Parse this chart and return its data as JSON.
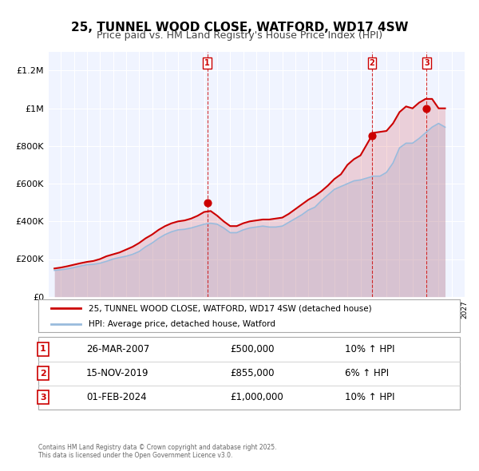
{
  "title": "25, TUNNEL WOOD CLOSE, WATFORD, WD17 4SW",
  "subtitle": "Price paid vs. HM Land Registry's House Price Index (HPI)",
  "legend_line1": "25, TUNNEL WOOD CLOSE, WATFORD, WD17 4SW (detached house)",
  "legend_line2": "HPI: Average price, detached house, Watford",
  "price_color": "#cc0000",
  "hpi_color": "#99bbdd",
  "transaction_color": "#cc0000",
  "vline_color": "#cc0000",
  "background_color": "#f0f4ff",
  "ylim": [
    0,
    1300000
  ],
  "yticks": [
    0,
    200000,
    400000,
    600000,
    800000,
    1000000,
    1200000
  ],
  "ytick_labels": [
    "£0",
    "£200K",
    "£400K",
    "£600K",
    "£800K",
    "£1M",
    "£1.2M"
  ],
  "xstart": 1995,
  "xend": 2027,
  "transactions": [
    {
      "label": "1",
      "date": 2007.23,
      "price": 500000,
      "date_str": "26-MAR-2007",
      "price_str": "£500,000",
      "hpi_str": "10% ↑ HPI"
    },
    {
      "label": "2",
      "date": 2019.88,
      "price": 855000,
      "date_str": "15-NOV-2019",
      "price_str": "£855,000",
      "hpi_str": "6% ↑ HPI"
    },
    {
      "label": "3",
      "date": 2024.08,
      "price": 1000000,
      "date_str": "01-FEB-2024",
      "price_str": "£1,000,000",
      "hpi_str": "10% ↑ HPI"
    }
  ],
  "footnote": "Contains HM Land Registry data © Crown copyright and database right 2025.\nThis data is licensed under the Open Government Licence v3.0.",
  "hpi_series": {
    "years": [
      1995.5,
      1996.0,
      1996.5,
      1997.0,
      1997.5,
      1998.0,
      1998.5,
      1999.0,
      1999.5,
      2000.0,
      2000.5,
      2001.0,
      2001.5,
      2002.0,
      2002.5,
      2003.0,
      2003.5,
      2004.0,
      2004.5,
      2005.0,
      2005.5,
      2006.0,
      2006.5,
      2007.0,
      2007.5,
      2008.0,
      2008.5,
      2009.0,
      2009.5,
      2010.0,
      2010.5,
      2011.0,
      2011.5,
      2012.0,
      2012.5,
      2013.0,
      2013.5,
      2014.0,
      2014.5,
      2015.0,
      2015.5,
      2016.0,
      2016.5,
      2017.0,
      2017.5,
      2018.0,
      2018.5,
      2019.0,
      2019.5,
      2020.0,
      2020.5,
      2021.0,
      2021.5,
      2022.0,
      2022.5,
      2023.0,
      2023.5,
      2024.0,
      2024.5,
      2025.0,
      2025.5
    ],
    "values": [
      140000,
      143000,
      148000,
      155000,
      163000,
      170000,
      172000,
      178000,
      188000,
      200000,
      208000,
      215000,
      225000,
      240000,
      265000,
      285000,
      310000,
      330000,
      345000,
      355000,
      358000,
      365000,
      375000,
      385000,
      390000,
      385000,
      365000,
      340000,
      340000,
      355000,
      365000,
      370000,
      375000,
      370000,
      370000,
      375000,
      395000,
      415000,
      435000,
      460000,
      475000,
      510000,
      540000,
      570000,
      585000,
      600000,
      615000,
      620000,
      630000,
      640000,
      640000,
      660000,
      710000,
      790000,
      815000,
      815000,
      840000,
      870000,
      900000,
      920000,
      900000
    ]
  },
  "price_series": {
    "years": [
      1995.5,
      1996.0,
      1996.5,
      1997.0,
      1997.5,
      1998.0,
      1998.5,
      1999.0,
      1999.5,
      2000.0,
      2000.5,
      2001.0,
      2001.5,
      2002.0,
      2002.5,
      2003.0,
      2003.5,
      2004.0,
      2004.5,
      2005.0,
      2005.5,
      2006.0,
      2006.5,
      2007.0,
      2007.5,
      2008.0,
      2008.5,
      2009.0,
      2009.5,
      2010.0,
      2010.5,
      2011.0,
      2011.5,
      2012.0,
      2012.5,
      2013.0,
      2013.5,
      2014.0,
      2014.5,
      2015.0,
      2015.5,
      2016.0,
      2016.5,
      2017.0,
      2017.5,
      2018.0,
      2018.5,
      2019.0,
      2019.5,
      2020.0,
      2020.5,
      2021.0,
      2021.5,
      2022.0,
      2022.5,
      2023.0,
      2023.5,
      2024.0,
      2024.5,
      2025.0,
      2025.5
    ],
    "values": [
      150000,
      155000,
      162000,
      170000,
      178000,
      185000,
      190000,
      200000,
      215000,
      225000,
      235000,
      250000,
      265000,
      285000,
      310000,
      330000,
      355000,
      375000,
      390000,
      400000,
      405000,
      415000,
      430000,
      450000,
      455000,
      430000,
      400000,
      375000,
      375000,
      390000,
      400000,
      405000,
      410000,
      410000,
      415000,
      420000,
      440000,
      465000,
      490000,
      515000,
      535000,
      560000,
      590000,
      625000,
      650000,
      700000,
      730000,
      750000,
      810000,
      870000,
      875000,
      880000,
      920000,
      980000,
      1010000,
      1000000,
      1030000,
      1050000,
      1050000,
      1000000,
      1000000
    ]
  }
}
